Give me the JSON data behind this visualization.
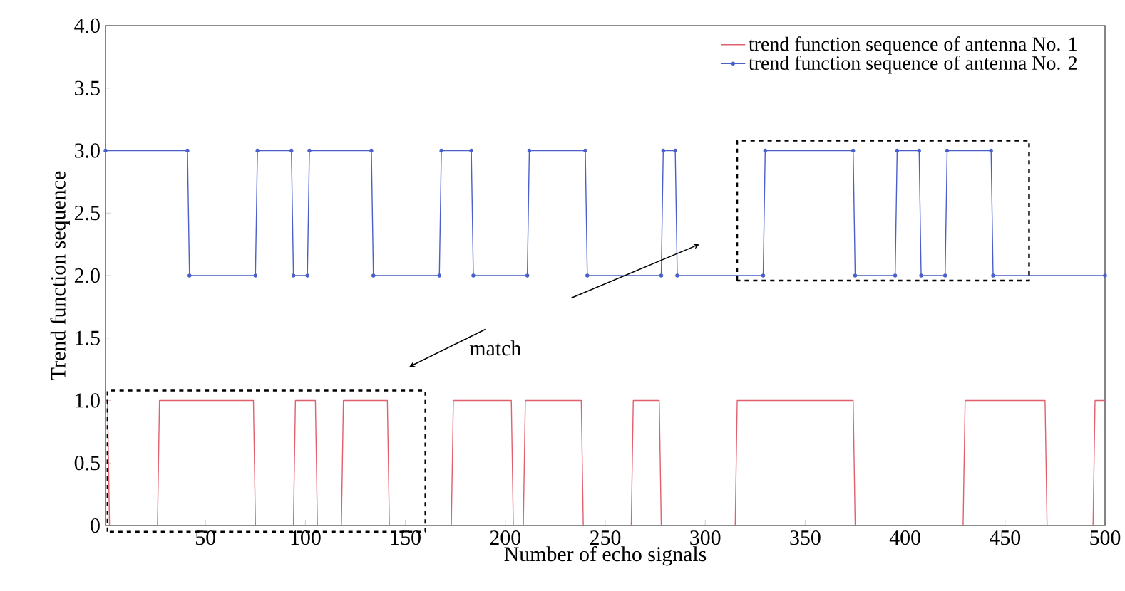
{
  "chart_data": {
    "type": "line",
    "xlabel": "Number of echo signals",
    "ylabel": "Trend function sequence",
    "xlim": [
      0,
      500
    ],
    "ylim": [
      0,
      4
    ],
    "xticks": [
      50,
      100,
      150,
      200,
      250,
      300,
      350,
      400,
      450,
      500
    ],
    "yticks": [
      0,
      0.5,
      {
        "value": 1,
        "label": "1.0"
      },
      1.5,
      {
        "value": 2,
        "label": "2.0"
      },
      2.5,
      {
        "value": 3,
        "label": "3.0"
      },
      3.5,
      {
        "value": 4,
        "label": "4.0"
      }
    ],
    "legend": "top right",
    "annotations": [
      "match"
    ],
    "series": [
      {
        "name": "trend function sequence of antenna No. 1",
        "color": "#e0606e",
        "marker": "none",
        "x": [
          0,
          1,
          2,
          26,
          27,
          74,
          75,
          94,
          95,
          105,
          106,
          118,
          119,
          141,
          142,
          173,
          174,
          203,
          204,
          209,
          210,
          238,
          239,
          263,
          264,
          277,
          278,
          315,
          316,
          374,
          375,
          429,
          430,
          470,
          471,
          494,
          495,
          500
        ],
        "values": [
          1,
          1,
          0,
          0,
          1,
          1,
          0,
          0,
          1,
          1,
          0,
          0,
          1,
          1,
          0,
          0,
          1,
          1,
          0,
          0,
          1,
          1,
          0,
          0,
          1,
          1,
          0,
          0,
          1,
          1,
          0,
          0,
          1,
          1,
          0,
          0,
          1,
          1
        ]
      },
      {
        "name": "trend function sequence of antenna No. 2",
        "color": "#4a5fc9",
        "marker": "circle",
        "x": [
          0,
          41,
          42,
          75,
          76,
          93,
          94,
          101,
          102,
          133,
          134,
          167,
          168,
          183,
          184,
          211,
          212,
          240,
          241,
          278,
          279,
          285,
          286,
          329,
          330,
          374,
          375,
          395,
          396,
          407,
          408,
          420,
          421,
          443,
          444,
          500
        ],
        "values": [
          3,
          3,
          2,
          2,
          3,
          3,
          2,
          2,
          3,
          3,
          2,
          2,
          3,
          3,
          2,
          2,
          3,
          3,
          2,
          2,
          3,
          3,
          2,
          2,
          3,
          3,
          2,
          2,
          3,
          3,
          2,
          2,
          3,
          3,
          2,
          2
        ]
      }
    ]
  }
}
